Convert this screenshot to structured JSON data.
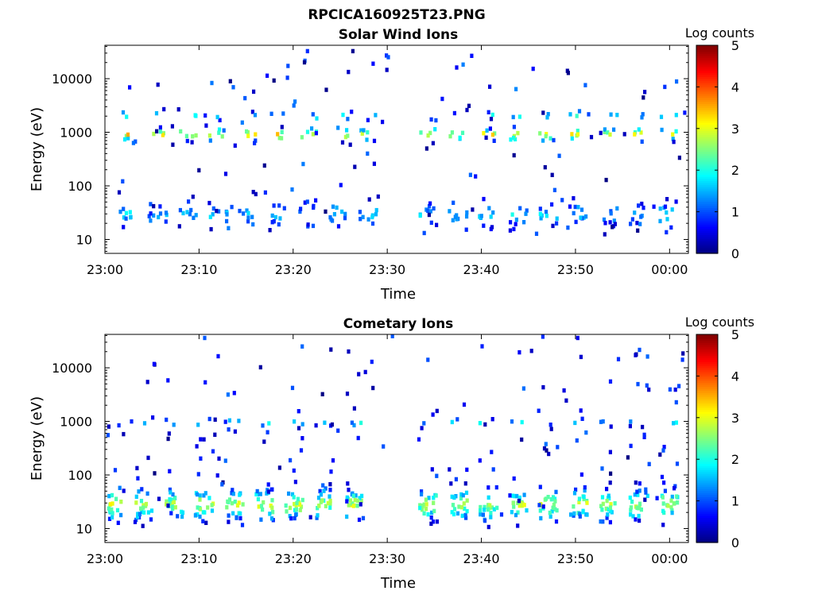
{
  "figure_title": "RPCICA160925T23.PNG",
  "colormap": [
    "#00007f",
    "#0000ff",
    "#007fff",
    "#00ffff",
    "#7fff7f",
    "#ffff00",
    "#ff7f00",
    "#ff0000",
    "#7f0000"
  ],
  "chart_data": [
    {
      "type": "heatmap",
      "title": "Solar Wind Ions",
      "xlabel": "Time",
      "ylabel": "Energy (eV)",
      "y_scale": "log",
      "x_range_minutes": [
        0,
        62
      ],
      "ylim": [
        5.5,
        42000
      ],
      "x_ticks": [
        {
          "value": 0,
          "label": "23:00"
        },
        {
          "value": 10,
          "label": "23:10"
        },
        {
          "value": 20,
          "label": "23:20"
        },
        {
          "value": 30,
          "label": "23:30"
        },
        {
          "value": 40,
          "label": "23:40"
        },
        {
          "value": 50,
          "label": "23:50"
        },
        {
          "value": 60,
          "label": "00:00"
        }
      ],
      "y_ticks": [
        {
          "value": 10,
          "label": "10"
        },
        {
          "value": 100,
          "label": "100"
        },
        {
          "value": 1000,
          "label": "1000"
        },
        {
          "value": 10000,
          "label": "10000"
        }
      ],
      "colorbar": {
        "label": "Log counts",
        "range": [
          0,
          5
        ],
        "ticks": [
          "0",
          "1",
          "2",
          "3",
          "4",
          "5"
        ]
      },
      "data_gap_minutes": [
        30.5,
        33.0
      ],
      "cycle_starts_minutes": [
        1.6,
        4.9,
        8.1,
        11.3,
        14.5,
        17.7,
        20.9,
        24.1,
        27.3,
        33.6,
        36.8,
        40.0,
        43.2,
        46.4,
        49.6,
        52.8,
        56.0,
        59.2
      ],
      "bands": [
        {
          "center_eV": 30,
          "spread_decades": 0.15,
          "peak_log_counts": 1.6,
          "cells_per_cycle": 10
        },
        {
          "center_eV": 900,
          "spread_decades": 0.07,
          "peak_log_counts": 3.2,
          "cells_per_cycle": 5
        },
        {
          "center_eV": 2000,
          "spread_decades": 0.05,
          "peak_log_counts": 2.0,
          "cells_per_cycle": 2
        }
      ],
      "sparse_points_log_range": [
        0,
        1.3
      ]
    },
    {
      "type": "heatmap",
      "title": "Cometary Ions",
      "xlabel": "Time",
      "ylabel": "Energy (eV)",
      "y_scale": "log",
      "x_range_minutes": [
        0,
        62
      ],
      "ylim": [
        5.5,
        42000
      ],
      "x_ticks": [
        {
          "value": 0,
          "label": "23:00"
        },
        {
          "value": 10,
          "label": "23:10"
        },
        {
          "value": 20,
          "label": "23:20"
        },
        {
          "value": 30,
          "label": "23:30"
        },
        {
          "value": 40,
          "label": "23:40"
        },
        {
          "value": 50,
          "label": "23:50"
        },
        {
          "value": 60,
          "label": "00:00"
        }
      ],
      "y_ticks": [
        {
          "value": 10,
          "label": "10"
        },
        {
          "value": 100,
          "label": "100"
        },
        {
          "value": 1000,
          "label": "1000"
        },
        {
          "value": 10000,
          "label": "10000"
        }
      ],
      "colorbar": {
        "label": "Log counts",
        "range": [
          0,
          5
        ],
        "ticks": [
          "0",
          "1",
          "2",
          "3",
          "4",
          "5"
        ]
      },
      "data_gap_minutes": [
        30.5,
        33.0
      ],
      "cycle_starts_minutes": [
        0.2,
        3.4,
        6.6,
        9.8,
        13.0,
        16.2,
        19.4,
        22.6,
        25.8,
        33.6,
        36.8,
        40.0,
        43.2,
        46.4,
        49.6,
        52.8,
        56.0,
        59.2
      ],
      "bands": [
        {
          "center_eV": 28,
          "spread_decades": 0.17,
          "peak_log_counts": 2.8,
          "cells_per_cycle": 22
        },
        {
          "center_eV": 950,
          "spread_decades": 0.05,
          "peak_log_counts": 1.7,
          "cells_per_cycle": 2
        },
        {
          "center_eV": 200,
          "spread_decades": 0.55,
          "peak_log_counts": 0.8,
          "cells_per_cycle": 3
        }
      ],
      "sparse_points_log_range": [
        0,
        1.2
      ]
    }
  ]
}
